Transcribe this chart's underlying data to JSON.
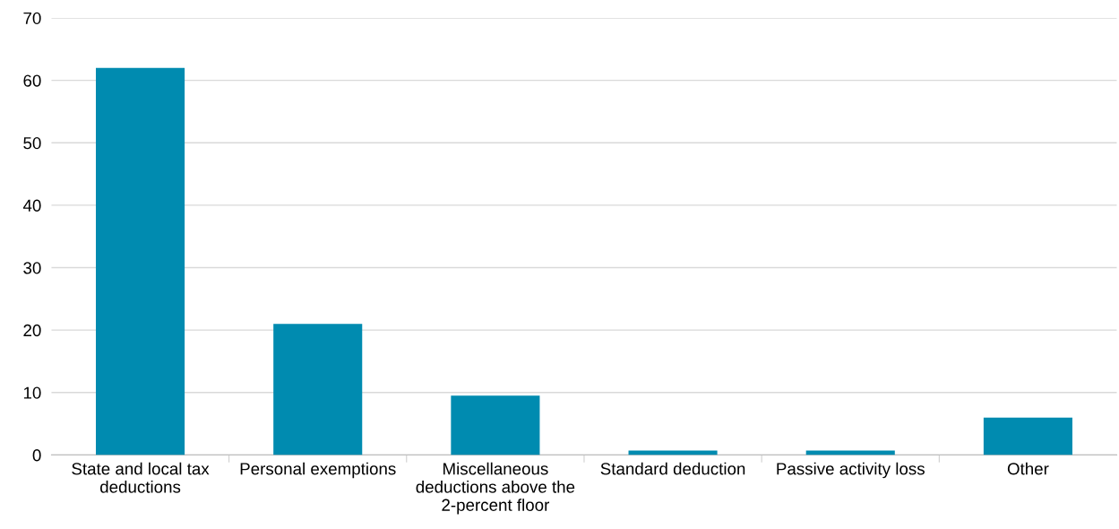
{
  "chart_data": {
    "type": "bar",
    "categories": [
      "State and local tax\ndeductions",
      "Personal exemptions",
      "Miscellaneous\ndeductions above the\n2-percent floor",
      "Standard deduction",
      "Passive activity loss",
      "Other"
    ],
    "values": [
      62,
      21,
      9.5,
      0.7,
      0.7,
      6
    ],
    "color": "#008bb0",
    "ylim": [
      0,
      70
    ],
    "yticks": [
      0,
      10,
      20,
      30,
      40,
      50,
      60,
      70
    ],
    "grid": "y",
    "legend": false
  }
}
